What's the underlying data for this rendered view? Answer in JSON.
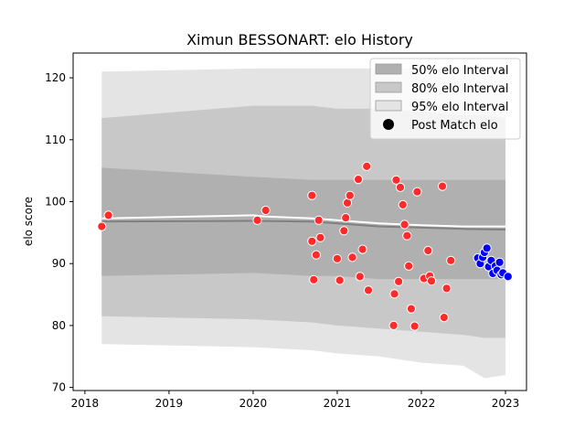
{
  "chart_data": {
    "type": "scatter",
    "title": "Ximun BESSONART: elo History",
    "xlabel": "",
    "ylabel": "elo score",
    "xlim": [
      2017.86,
      2023.25
    ],
    "ylim": [
      69.5,
      124
    ],
    "x_ticks": [
      2018,
      2019,
      2020,
      2021,
      2022,
      2023
    ],
    "y_ticks": [
      70,
      80,
      90,
      100,
      110,
      120
    ],
    "grid": false,
    "legend_position": "top-right",
    "legend": [
      {
        "label": "50% elo Interval",
        "kind": "patch",
        "color": "#b0b0b0"
      },
      {
        "label": "80% elo Interval",
        "kind": "patch",
        "color": "#c8c8c8"
      },
      {
        "label": "95% elo Interval",
        "kind": "patch",
        "color": "#e4e4e4"
      },
      {
        "label": "Post Match elo",
        "kind": "marker",
        "color": "#000000"
      }
    ],
    "bands": {
      "x": [
        2018.2,
        2020.0,
        2020.7,
        2021.0,
        2021.5,
        2022.0,
        2022.5,
        2022.75,
        2023.0
      ],
      "b95_upper": [
        121,
        121.5,
        121.5,
        121.5,
        121.5,
        121.5,
        121.5,
        121.5,
        121.5
      ],
      "b95_lower": [
        77,
        76.5,
        76,
        75.5,
        75,
        74,
        73.5,
        71.5,
        72
      ],
      "b80_upper": [
        113.5,
        115.5,
        115.5,
        115,
        115,
        114.5,
        114,
        114,
        113.5
      ],
      "b80_lower": [
        81.5,
        81,
        80.5,
        80,
        79.5,
        79,
        78.5,
        78,
        78
      ],
      "b50_upper": [
        105.5,
        104,
        103.5,
        103.5,
        103.5,
        103.5,
        103.5,
        103.5,
        103.5
      ],
      "b50_lower": [
        88,
        88.5,
        88,
        88,
        87.5,
        87.5,
        87.5,
        87.5,
        87.5
      ]
    },
    "median_line": {
      "x": [
        2018.2,
        2020.0,
        2020.7,
        2021.0,
        2021.5,
        2022.0,
        2022.5,
        2023.0
      ],
      "y": [
        96.8,
        96.9,
        96.8,
        96.5,
        96.0,
        95.8,
        95.6,
        95.5
      ],
      "color": "#808080"
    },
    "mean_line": {
      "x": [
        2018.2,
        2020.0,
        2020.15,
        2020.7,
        2021.0,
        2021.5,
        2022.0,
        2022.5,
        2023.0
      ],
      "y": [
        97.3,
        97.8,
        97.6,
        97.3,
        97.0,
        96.5,
        96.2,
        96.0,
        96.0
      ],
      "color": "#ffffff"
    },
    "series": [
      {
        "color": "#ff2a2a",
        "points": [
          [
            2018.2,
            96.0
          ],
          [
            2018.28,
            97.8
          ],
          [
            2020.05,
            97.0
          ],
          [
            2020.15,
            98.6
          ],
          [
            2020.7,
            101.0
          ],
          [
            2020.7,
            93.6
          ],
          [
            2020.72,
            87.4
          ],
          [
            2020.75,
            91.4
          ],
          [
            2020.78,
            97.0
          ],
          [
            2020.8,
            94.2
          ],
          [
            2021.0,
            90.8
          ],
          [
            2021.03,
            87.3
          ],
          [
            2021.08,
            95.3
          ],
          [
            2021.1,
            97.4
          ],
          [
            2021.12,
            99.8
          ],
          [
            2021.15,
            101.0
          ],
          [
            2021.18,
            91.0
          ],
          [
            2021.25,
            103.6
          ],
          [
            2021.27,
            87.9
          ],
          [
            2021.3,
            92.3
          ],
          [
            2021.35,
            105.7
          ],
          [
            2021.37,
            85.7
          ],
          [
            2021.67,
            80.0
          ],
          [
            2021.68,
            85.1
          ],
          [
            2021.7,
            103.5
          ],
          [
            2021.73,
            87.1
          ],
          [
            2021.75,
            102.3
          ],
          [
            2021.78,
            99.5
          ],
          [
            2021.8,
            96.3
          ],
          [
            2021.83,
            94.5
          ],
          [
            2021.85,
            89.6
          ],
          [
            2021.88,
            82.7
          ],
          [
            2021.92,
            79.9
          ],
          [
            2021.95,
            101.6
          ],
          [
            2022.03,
            87.6
          ],
          [
            2022.08,
            92.1
          ],
          [
            2022.1,
            88.0
          ],
          [
            2022.12,
            87.2
          ],
          [
            2022.25,
            102.5
          ],
          [
            2022.27,
            81.3
          ],
          [
            2022.3,
            86.0
          ],
          [
            2022.35,
            90.5
          ]
        ]
      },
      {
        "color": "#0000ff",
        "points": [
          [
            2022.67,
            90.9
          ],
          [
            2022.7,
            90.0
          ],
          [
            2022.73,
            91.0
          ],
          [
            2022.75,
            91.8
          ],
          [
            2022.78,
            92.5
          ],
          [
            2022.8,
            89.5
          ],
          [
            2022.83,
            90.5
          ],
          [
            2022.85,
            88.4
          ],
          [
            2022.88,
            89.6
          ],
          [
            2022.9,
            88.9
          ],
          [
            2022.93,
            90.2
          ],
          [
            2022.95,
            88.2
          ],
          [
            2022.97,
            88.5
          ],
          [
            2023.03,
            87.9
          ]
        ]
      }
    ]
  }
}
